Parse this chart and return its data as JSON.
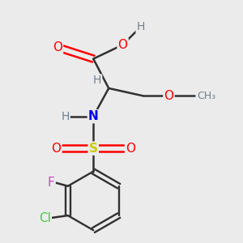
{
  "background_color": "#ebebeb",
  "atom_colors": {
    "O": "#ff0000",
    "N": "#0000ee",
    "S": "#cccc00",
    "F": "#cc44cc",
    "Cl": "#44cc44",
    "H": "#708090",
    "C": "#303030"
  },
  "bond_color": "#303030",
  "bond_lw": 1.8,
  "font_size_atom": 11,
  "font_size_h": 10
}
